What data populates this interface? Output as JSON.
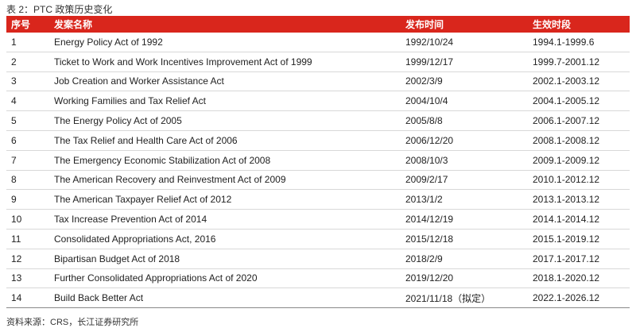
{
  "title": "表 2：PTC 政策历史变化",
  "table": {
    "header": [
      "序号",
      "发案名称",
      "发布时间",
      "生效时段"
    ],
    "rows": [
      [
        "1",
        "Energy Policy Act of 1992",
        "1992/10/24",
        "1994.1-1999.6"
      ],
      [
        "2",
        "Ticket to Work and Work Incentives Improvement Act of 1999",
        "1999/12/17",
        "1999.7-2001.12"
      ],
      [
        "3",
        "Job Creation and Worker Assistance Act",
        "2002/3/9",
        "2002.1-2003.12"
      ],
      [
        "4",
        "Working Families and Tax Relief Act",
        "2004/10/4",
        "2004.1-2005.12"
      ],
      [
        "5",
        "The Energy Policy Act of 2005",
        "2005/8/8",
        "2006.1-2007.12"
      ],
      [
        "6",
        "The Tax Relief and Health Care Act of 2006",
        "2006/12/20",
        "2008.1-2008.12"
      ],
      [
        "7",
        "The Emergency Economic Stabilization Act of 2008",
        "2008/10/3",
        "2009.1-2009.12"
      ],
      [
        "8",
        "The American Recovery and Reinvestment Act of 2009",
        "2009/2/17",
        "2010.1-2012.12"
      ],
      [
        "9",
        "The American Taxpayer Relief Act of 2012",
        "2013/1/2",
        "2013.1-2013.12"
      ],
      [
        "10",
        "Tax Increase Prevention Act of 2014",
        "2014/12/19",
        "2014.1-2014.12"
      ],
      [
        "11",
        "Consolidated Appropriations Act, 2016",
        "2015/12/18",
        "2015.1-2019.12"
      ],
      [
        "12",
        "Bipartisan Budget Act of 2018",
        "2018/2/9",
        "2017.1-2017.12"
      ],
      [
        "13",
        "Further Consolidated Appropriations Act of 2020",
        "2019/12/20",
        "2018.1-2020.12"
      ],
      [
        "14",
        "Build Back Better Act",
        "2021/11/18（拟定）",
        "2022.1-2026.12"
      ]
    ]
  },
  "source": "资料来源：CRS，长江证券研究所"
}
